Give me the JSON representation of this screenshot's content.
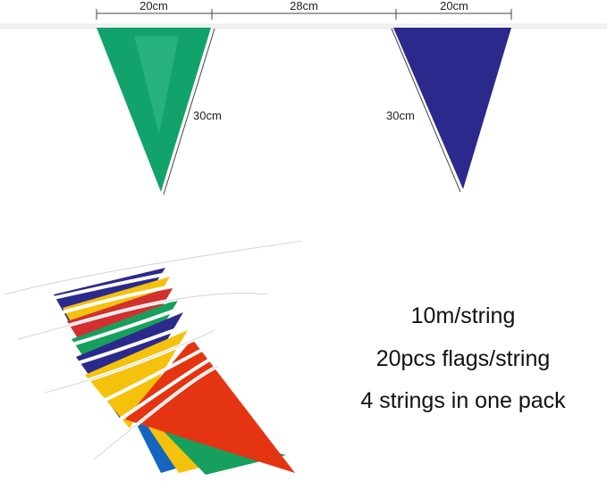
{
  "dimensions": {
    "top": [
      "20cm",
      "28cm",
      "20cm"
    ],
    "sides": [
      "30cm",
      "30cm"
    ]
  },
  "features": [
    "10m/string",
    "20pcs flags/string",
    "4 strings in one pack"
  ]
}
